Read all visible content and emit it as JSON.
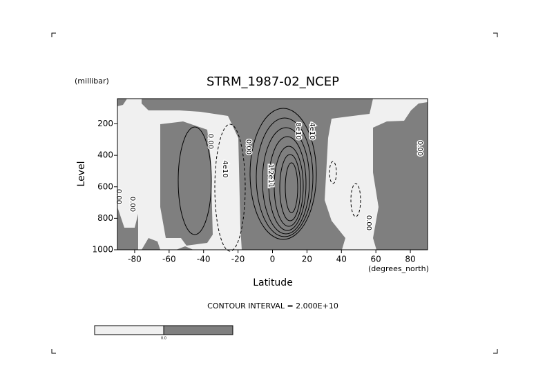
{
  "chart_data": {
    "type": "contour",
    "title": "STRM_1987-02_NCEP",
    "x_label": "Latitude",
    "x_unit": "(degrees_north)",
    "y_label": "Level",
    "y_unit": "(millibar)",
    "note": "CONTOUR INTERVAL = 2.000E+10",
    "xlim": [
      -90,
      90
    ],
    "xticks": [
      -80,
      -60,
      -40,
      -20,
      0,
      20,
      40,
      60,
      80
    ],
    "ylim": [
      1000,
      40
    ],
    "yticks": [
      200,
      400,
      600,
      800,
      1000
    ],
    "colors": [
      "#f0f0f0",
      "#7f7f7f"
    ],
    "colorbar_label": "0.0",
    "contour_labels": [
      "0.00",
      "0.00",
      "0.00",
      "0.00",
      "0.00",
      "0.00",
      "4e10",
      "8e10",
      "4e10",
      "1.2e11"
    ]
  }
}
